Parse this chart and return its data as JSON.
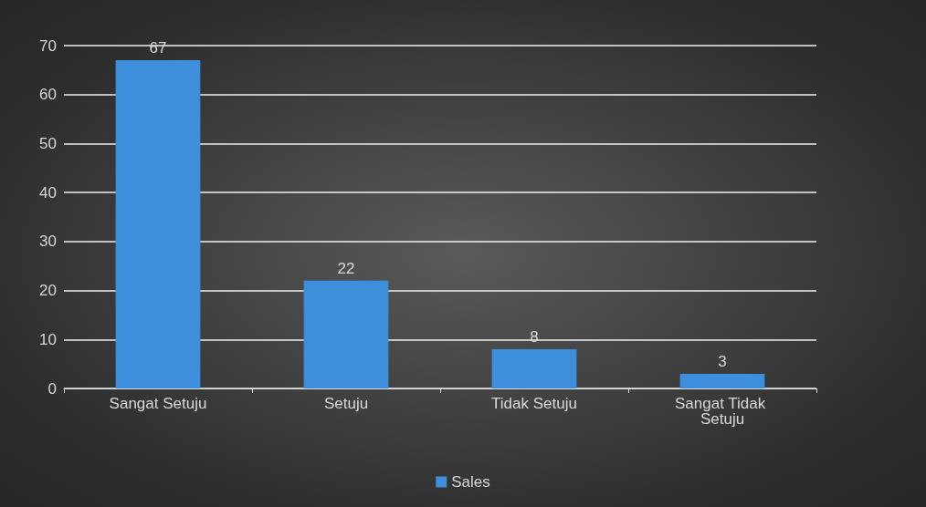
{
  "chart_data": {
    "type": "bar",
    "categories": [
      "Sangat Setuju",
      "Setuju",
      "Tidak Setuju",
      "Sangat Tidak Setuju"
    ],
    "series": [
      {
        "name": "Sales",
        "color": "#3d8fdb",
        "values": [
          67,
          22,
          8,
          3
        ]
      }
    ],
    "ylim": [
      0,
      70
    ],
    "yticks": [
      0,
      10,
      20,
      30,
      40,
      50,
      60,
      70
    ],
    "grid": "y",
    "legend": "bottom",
    "data_labels": true
  }
}
